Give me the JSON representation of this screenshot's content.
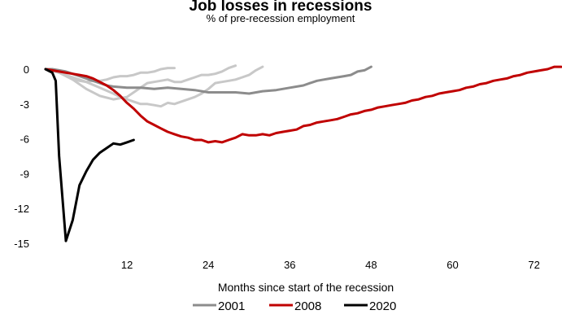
{
  "chart_data": {
    "type": "line",
    "title": "Job losses in recessions",
    "subtitle": "% of pre-recession employment",
    "xlabel": "Months since start of the recession",
    "ylabel": "",
    "xlim": [
      0,
      76
    ],
    "ylim": [
      -15,
      0
    ],
    "x_ticks": [
      12,
      24,
      36,
      48,
      60,
      72
    ],
    "y_ticks": [
      0,
      -3,
      -6,
      -9,
      -12,
      -15
    ],
    "grid": false,
    "legend_position": "bottom",
    "legend": [
      "2001",
      "2008",
      "2020"
    ],
    "series": [
      {
        "name": "",
        "color": "#c8c8c8",
        "legend": false,
        "points": [
          [
            0,
            0
          ],
          [
            1,
            -0.1
          ],
          [
            2,
            -0.2
          ],
          [
            3,
            -0.5
          ],
          [
            4,
            -0.8
          ],
          [
            5,
            -1.0
          ],
          [
            6,
            -1.1
          ],
          [
            7,
            -1.0
          ],
          [
            8,
            -1.0
          ],
          [
            9,
            -0.9
          ],
          [
            10,
            -0.7
          ],
          [
            11,
            -0.6
          ],
          [
            12,
            -0.6
          ],
          [
            13,
            -0.5
          ],
          [
            14,
            -0.3
          ],
          [
            15,
            -0.3
          ],
          [
            16,
            -0.2
          ],
          [
            17,
            0.0
          ],
          [
            18,
            0.1
          ],
          [
            19,
            0.1
          ]
        ]
      },
      {
        "name": "",
        "color": "#c8c8c8",
        "legend": false,
        "points": [
          [
            0,
            0
          ],
          [
            2,
            -0.3
          ],
          [
            4,
            -0.9
          ],
          [
            6,
            -1.7
          ],
          [
            8,
            -2.3
          ],
          [
            10,
            -2.6
          ],
          [
            12,
            -2.4
          ],
          [
            13,
            -2.0
          ],
          [
            14,
            -1.6
          ],
          [
            15,
            -1.2
          ],
          [
            16,
            -1.1
          ],
          [
            18,
            -0.9
          ],
          [
            19,
            -1.1
          ],
          [
            20,
            -1.1
          ],
          [
            21,
            -0.9
          ],
          [
            22,
            -0.7
          ],
          [
            23,
            -0.5
          ],
          [
            24,
            -0.5
          ],
          [
            25,
            -0.4
          ],
          [
            26,
            -0.2
          ],
          [
            27,
            0.1
          ],
          [
            28,
            0.3
          ]
        ]
      },
      {
        "name": "",
        "color": "#c8c8c8",
        "legend": false,
        "points": [
          [
            0,
            0
          ],
          [
            2,
            -0.3
          ],
          [
            4,
            -0.7
          ],
          [
            6,
            -1.1
          ],
          [
            8,
            -1.6
          ],
          [
            10,
            -2.1
          ],
          [
            11,
            -2.4
          ],
          [
            12,
            -2.6
          ],
          [
            13,
            -2.8
          ],
          [
            14,
            -3.0
          ],
          [
            15,
            -3.0
          ],
          [
            16,
            -3.1
          ],
          [
            17,
            -3.2
          ],
          [
            18,
            -2.9
          ],
          [
            19,
            -3.0
          ],
          [
            20,
            -2.8
          ],
          [
            21,
            -2.6
          ],
          [
            22,
            -2.4
          ],
          [
            23,
            -2.1
          ],
          [
            24,
            -1.7
          ],
          [
            25,
            -1.2
          ],
          [
            26,
            -1.1
          ],
          [
            27,
            -1.0
          ],
          [
            28,
            -0.9
          ],
          [
            29,
            -0.7
          ],
          [
            30,
            -0.5
          ],
          [
            31,
            -0.1
          ],
          [
            32,
            0.2
          ]
        ]
      },
      {
        "name": "2001",
        "color": "#8c8c8c",
        "legend": true,
        "points": [
          [
            0,
            0
          ],
          [
            1,
            0
          ],
          [
            2,
            -0.1
          ],
          [
            3,
            -0.2
          ],
          [
            4,
            -0.4
          ],
          [
            5,
            -0.6
          ],
          [
            6,
            -0.8
          ],
          [
            7,
            -1.0
          ],
          [
            8,
            -1.2
          ],
          [
            9,
            -1.4
          ],
          [
            10,
            -1.5
          ],
          [
            12,
            -1.6
          ],
          [
            14,
            -1.6
          ],
          [
            16,
            -1.7
          ],
          [
            18,
            -1.6
          ],
          [
            20,
            -1.7
          ],
          [
            22,
            -1.8
          ],
          [
            24,
            -2.0
          ],
          [
            26,
            -2.0
          ],
          [
            28,
            -2.0
          ],
          [
            30,
            -2.1
          ],
          [
            32,
            -1.9
          ],
          [
            34,
            -1.8
          ],
          [
            36,
            -1.6
          ],
          [
            38,
            -1.4
          ],
          [
            39,
            -1.2
          ],
          [
            40,
            -1.0
          ],
          [
            41,
            -0.9
          ],
          [
            42,
            -0.8
          ],
          [
            43,
            -0.7
          ],
          [
            44,
            -0.6
          ],
          [
            45,
            -0.5
          ],
          [
            46,
            -0.2
          ],
          [
            47,
            -0.1
          ],
          [
            48,
            0.2
          ]
        ]
      },
      {
        "name": "2008",
        "color": "#c00000",
        "legend": true,
        "points": [
          [
            0,
            0
          ],
          [
            1,
            -0.1
          ],
          [
            2,
            -0.2
          ],
          [
            3,
            -0.3
          ],
          [
            4,
            -0.4
          ],
          [
            5,
            -0.5
          ],
          [
            6,
            -0.6
          ],
          [
            7,
            -0.8
          ],
          [
            8,
            -1.1
          ],
          [
            9,
            -1.4
          ],
          [
            10,
            -1.8
          ],
          [
            11,
            -2.3
          ],
          [
            12,
            -2.9
          ],
          [
            13,
            -3.4
          ],
          [
            14,
            -4.0
          ],
          [
            15,
            -4.5
          ],
          [
            16,
            -4.8
          ],
          [
            17,
            -5.1
          ],
          [
            18,
            -5.4
          ],
          [
            19,
            -5.6
          ],
          [
            20,
            -5.8
          ],
          [
            21,
            -5.9
          ],
          [
            22,
            -6.1
          ],
          [
            23,
            -6.1
          ],
          [
            24,
            -6.3
          ],
          [
            25,
            -6.2
          ],
          [
            26,
            -6.3
          ],
          [
            27,
            -6.1
          ],
          [
            28,
            -5.9
          ],
          [
            29,
            -5.6
          ],
          [
            30,
            -5.7
          ],
          [
            31,
            -5.7
          ],
          [
            32,
            -5.6
          ],
          [
            33,
            -5.7
          ],
          [
            34,
            -5.5
          ],
          [
            35,
            -5.4
          ],
          [
            36,
            -5.3
          ],
          [
            37,
            -5.2
          ],
          [
            38,
            -4.9
          ],
          [
            39,
            -4.8
          ],
          [
            40,
            -4.6
          ],
          [
            41,
            -4.5
          ],
          [
            42,
            -4.4
          ],
          [
            43,
            -4.3
          ],
          [
            44,
            -4.1
          ],
          [
            45,
            -3.9
          ],
          [
            46,
            -3.8
          ],
          [
            47,
            -3.6
          ],
          [
            48,
            -3.5
          ],
          [
            49,
            -3.3
          ],
          [
            50,
            -3.2
          ],
          [
            51,
            -3.1
          ],
          [
            52,
            -3.0
          ],
          [
            53,
            -2.9
          ],
          [
            54,
            -2.7
          ],
          [
            55,
            -2.6
          ],
          [
            56,
            -2.4
          ],
          [
            57,
            -2.3
          ],
          [
            58,
            -2.1
          ],
          [
            59,
            -2.0
          ],
          [
            60,
            -1.9
          ],
          [
            61,
            -1.8
          ],
          [
            62,
            -1.6
          ],
          [
            63,
            -1.5
          ],
          [
            64,
            -1.3
          ],
          [
            65,
            -1.2
          ],
          [
            66,
            -1.0
          ],
          [
            67,
            -0.9
          ],
          [
            68,
            -0.8
          ],
          [
            69,
            -0.6
          ],
          [
            70,
            -0.5
          ],
          [
            71,
            -0.3
          ],
          [
            72,
            -0.2
          ],
          [
            73,
            -0.1
          ],
          [
            74,
            0.0
          ],
          [
            75,
            0.2
          ],
          [
            76,
            0.2
          ]
        ]
      },
      {
        "name": "2020",
        "color": "#000000",
        "legend": true,
        "points": [
          [
            0,
            0
          ],
          [
            1,
            -0.3
          ],
          [
            1.5,
            -1.0
          ],
          [
            2,
            -7.5
          ],
          [
            3,
            -14.8
          ],
          [
            4,
            -13.0
          ],
          [
            5,
            -10.0
          ],
          [
            6,
            -8.8
          ],
          [
            7,
            -7.8
          ],
          [
            8,
            -7.2
          ],
          [
            9,
            -6.8
          ],
          [
            10,
            -6.4
          ],
          [
            11,
            -6.5
          ],
          [
            12,
            -6.3
          ],
          [
            13,
            -6.1
          ]
        ]
      }
    ]
  }
}
